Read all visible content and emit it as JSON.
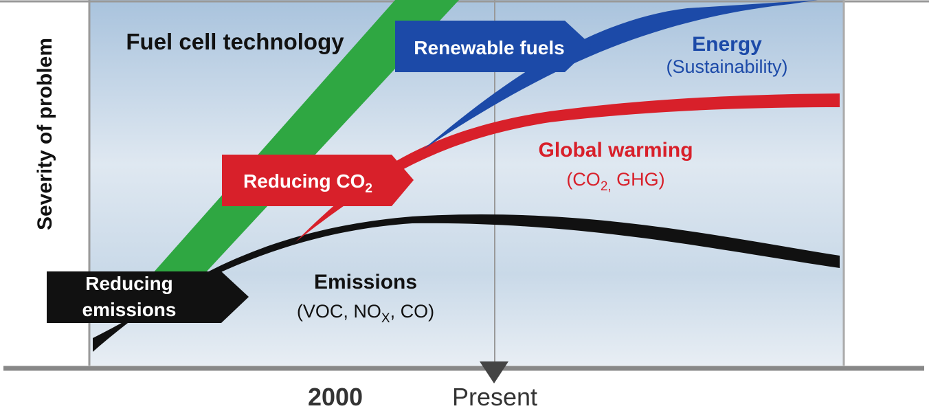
{
  "y_axis_label": "Severity of problem",
  "x_labels": {
    "year": "2000",
    "present": "Present"
  },
  "fuel_cell": {
    "label": "Fuel cell technology"
  },
  "renewable_fuels": {
    "label": "Renewable fuels"
  },
  "energy": {
    "title": "Energy",
    "subtitle": "(Sustainability)"
  },
  "reducing_co2": {
    "label": "Reducing CO",
    "sub": "2"
  },
  "global_warming": {
    "title": "Global warming",
    "subtitle_parts": [
      "(CO",
      "2,",
      " GHG)"
    ]
  },
  "reducing_emissions": {
    "lines": [
      "Reducing",
      "emissions"
    ]
  },
  "emissions": {
    "title": "Emissions",
    "subtitle_parts": [
      "(VOC, NO",
      "X",
      ", CO)"
    ]
  }
}
